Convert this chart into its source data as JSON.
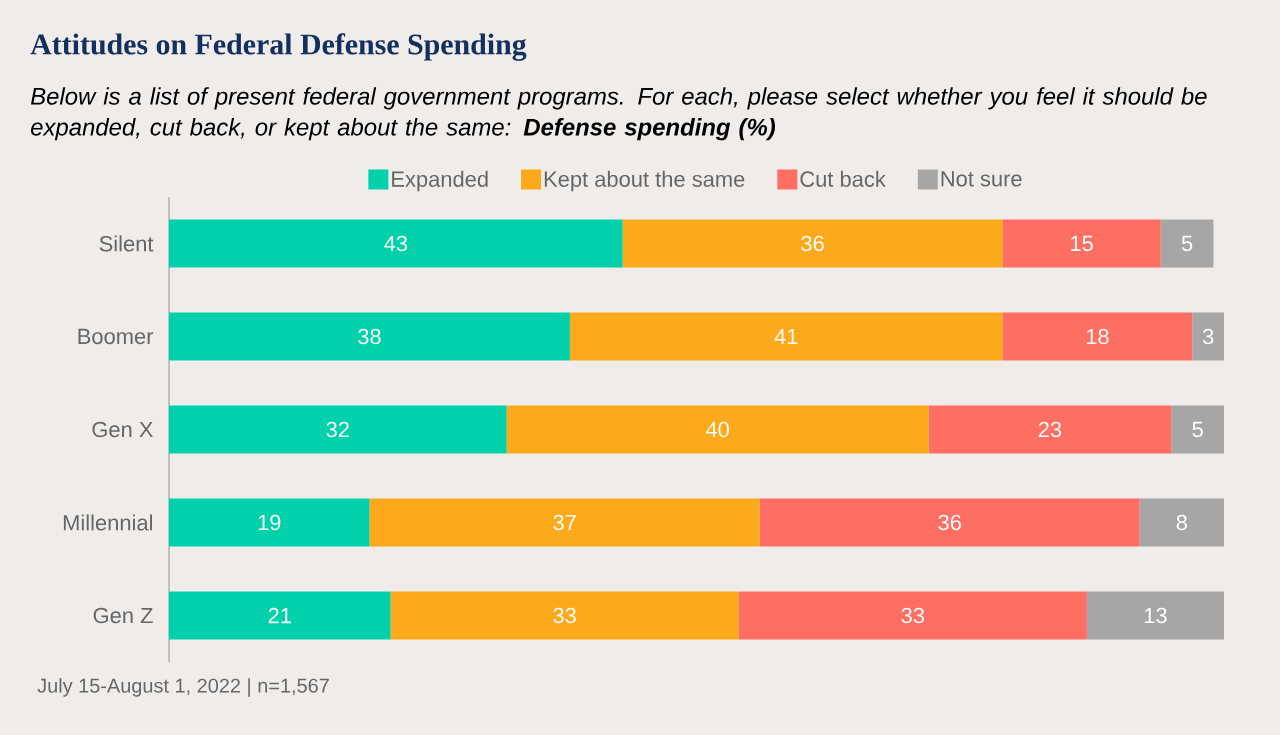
{
  "chart_data": {
    "type": "bar",
    "orientation": "horizontal",
    "stacked": true,
    "title": "Attitudes on Federal Defense Spending",
    "subtitle": "Below is a list of present federal government programs. For each, please select whether you feel it should be expanded, cut back, or kept about the same: **Defense spending (%)**",
    "categories": [
      "Silent",
      "Boomer",
      "Gen X",
      "Millennial",
      "Gen Z"
    ],
    "series": [
      {
        "name": "Expanded",
        "color": "#00d1ab",
        "values": [
          43,
          38,
          32,
          19,
          21
        ]
      },
      {
        "name": "Kept about the same",
        "color": "#fcaa1b",
        "values": [
          36,
          41,
          40,
          37,
          33
        ]
      },
      {
        "name": "Cut back",
        "color": "#ff6e63",
        "values": [
          15,
          18,
          23,
          36,
          33
        ]
      },
      {
        "name": "Not sure",
        "color": "#a6a6a6",
        "values": [
          5,
          3,
          5,
          8,
          13
        ]
      }
    ],
    "data_labels": true,
    "legend": "top",
    "annotations": [
      "July 15-August 1, 2022 | n=1,567"
    ]
  }
}
